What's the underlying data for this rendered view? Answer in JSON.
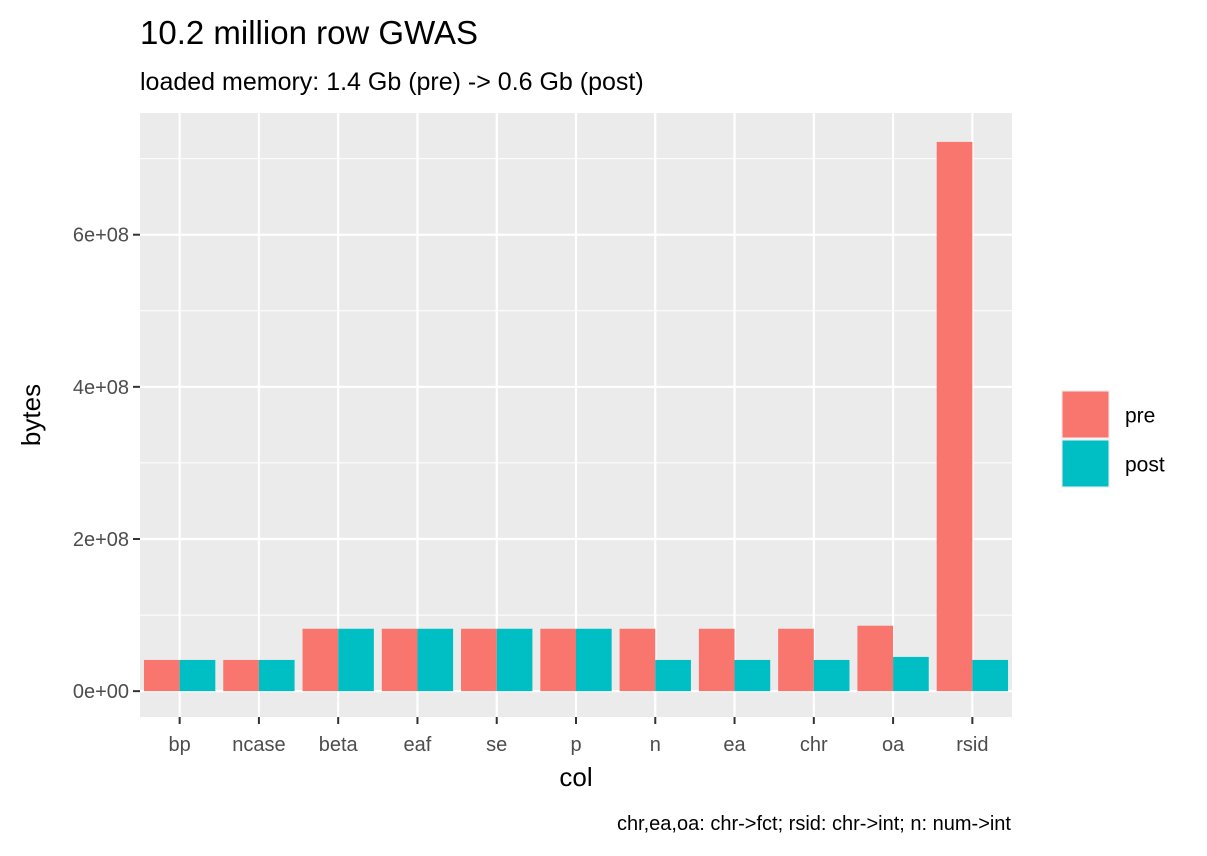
{
  "chart_data": {
    "type": "bar",
    "title": "10.2 million row GWAS",
    "subtitle": "loaded memory: 1.4 Gb (pre) -> 0.6 Gb (post)",
    "caption": "chr,ea,oa: chr->fct; rsid: chr->int; n: num->int",
    "xlabel": "col",
    "ylabel": "bytes",
    "categories": [
      "bp",
      "ncase",
      "beta",
      "eaf",
      "se",
      "p",
      "n",
      "ea",
      "chr",
      "oa",
      "rsid"
    ],
    "series": [
      {
        "name": "pre",
        "color": "#F8766D",
        "values": [
          41000000,
          41000000,
          82000000,
          82000000,
          82000000,
          82000000,
          82000000,
          82000000,
          82000000,
          86000000,
          722000000
        ]
      },
      {
        "name": "post",
        "color": "#00BFC4",
        "values": [
          41000000,
          41000000,
          82000000,
          82000000,
          82000000,
          82000000,
          41000000,
          41000000,
          41000000,
          45000000,
          41000000
        ]
      }
    ],
    "ylim": [
      -34000000,
      760000000
    ],
    "yticks": [
      0,
      200000000,
      400000000,
      600000000
    ],
    "ytick_labels": [
      "0e+00",
      "2e+08",
      "4e+08",
      "6e+08"
    ],
    "grid": true,
    "legend": {
      "position": "right"
    }
  }
}
